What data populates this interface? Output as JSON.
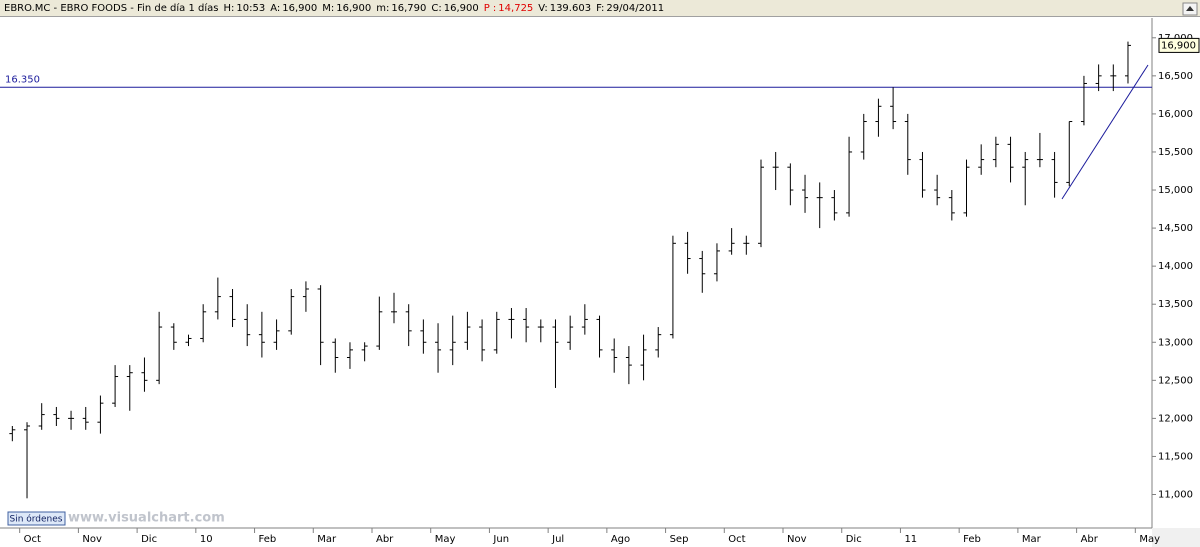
{
  "header": {
    "symbol": "EBRO.MC - EBRO FOODS - Fin de día 1 días",
    "fields": [
      {
        "label": "H:",
        "value": "10:53"
      },
      {
        "label": "A:",
        "value": "16,900"
      },
      {
        "label": "M:",
        "value": "16,900"
      },
      {
        "label": "m:",
        "value": "16,790"
      },
      {
        "label": "C:",
        "value": "16,900"
      },
      {
        "label": "P :",
        "value": "14,725",
        "color": "#e00000"
      },
      {
        "label": "V:",
        "value": "139.603"
      },
      {
        "label": "F:",
        "value": "29/04/2011"
      }
    ]
  },
  "chart_data": {
    "type": "ohlc",
    "color": "#000000",
    "categories": [
      null,
      "Oct",
      null,
      null,
      null,
      "Nov",
      null,
      null,
      null,
      "Dic",
      null,
      null,
      null,
      "10",
      null,
      null,
      null,
      "Feb",
      null,
      null,
      null,
      "Mar",
      null,
      null,
      null,
      "Abr",
      null,
      null,
      null,
      "May",
      null,
      null,
      null,
      "Jun",
      null,
      null,
      null,
      "Jul",
      null,
      null,
      null,
      "Ago",
      null,
      null,
      null,
      "Sep",
      null,
      null,
      null,
      "Oct",
      null,
      null,
      null,
      "Nov",
      null,
      null,
      null,
      "Dic",
      null,
      null,
      null,
      "11",
      null,
      null,
      null,
      "Feb",
      null,
      null,
      null,
      "Mar",
      null,
      null,
      null,
      "Abr",
      null,
      null,
      null,
      "May"
    ],
    "open": [
      11800,
      11850,
      11900,
      12050,
      12000,
      12000,
      11950,
      12200,
      12550,
      12600,
      12500,
      13200,
      13000,
      13050,
      13400,
      13600,
      13300,
      13100,
      13000,
      13150,
      13600,
      13700,
      13000,
      12800,
      12900,
      12950,
      13400,
      13400,
      13150,
      13000,
      12900,
      13000,
      13200,
      12900,
      13300,
      13300,
      13200,
      13200,
      13000,
      13200,
      13300,
      12900,
      12800,
      12700,
      12900,
      13100,
      14300,
      14100,
      13900,
      14200,
      14300,
      14300,
      15300,
      15300,
      15000,
      14900,
      14900,
      14700,
      15500,
      15900,
      16100,
      15900,
      15400,
      15000,
      14900,
      14700,
      15300,
      15400,
      15600,
      15300,
      15400,
      15400,
      15100,
      15900,
      16400,
      16500,
      16500,
      null
    ],
    "high": [
      11900,
      11950,
      12200,
      12150,
      12100,
      12150,
      12300,
      12700,
      12700,
      12800,
      13400,
      13250,
      13100,
      13500,
      13850,
      13700,
      13500,
      13400,
      13300,
      13700,
      13800,
      13750,
      13050,
      13000,
      13000,
      13600,
      13650,
      13500,
      13300,
      13250,
      13350,
      13400,
      13300,
      13400,
      13450,
      13450,
      13300,
      13300,
      13350,
      13500,
      13350,
      13050,
      12950,
      13100,
      13200,
      14400,
      14450,
      14200,
      14300,
      14500,
      14400,
      15400,
      15500,
      15350,
      15200,
      15100,
      15000,
      15700,
      16000,
      16200,
      16350,
      16000,
      15500,
      15200,
      15000,
      15400,
      15600,
      15700,
      15700,
      15500,
      15750,
      15500,
      15900,
      16500,
      16650,
      16650,
      16950,
      null
    ],
    "low": [
      11700,
      10950,
      11850,
      11900,
      11850,
      11850,
      11800,
      12150,
      12100,
      12350,
      12450,
      12900,
      12950,
      13000,
      13300,
      13200,
      12950,
      12800,
      12900,
      13100,
      13400,
      12700,
      12600,
      12650,
      12750,
      12900,
      13250,
      12950,
      12850,
      12600,
      12700,
      12900,
      12750,
      12850,
      13050,
      13000,
      13000,
      12400,
      12900,
      13100,
      12800,
      12600,
      12450,
      12500,
      12800,
      13050,
      13900,
      13650,
      13800,
      14150,
      14150,
      14250,
      15000,
      14800,
      14700,
      14500,
      14600,
      14650,
      15400,
      15700,
      15800,
      15200,
      14900,
      14800,
      14600,
      14650,
      15200,
      15300,
      15100,
      14800,
      15300,
      14900,
      15050,
      15850,
      16300,
      16300,
      16400,
      null
    ],
    "close": [
      11850,
      11900,
      12050,
      12000,
      12000,
      11950,
      12200,
      12550,
      12600,
      12500,
      13200,
      13000,
      13050,
      13400,
      13600,
      13300,
      13100,
      13000,
      13150,
      13600,
      13700,
      13000,
      12800,
      12900,
      12950,
      13400,
      13400,
      13150,
      13000,
      12900,
      13000,
      13200,
      12900,
      13300,
      13300,
      13200,
      13200,
      13000,
      13200,
      13300,
      12900,
      12800,
      12700,
      12900,
      13100,
      14300,
      14100,
      13900,
      14200,
      14300,
      14300,
      15300,
      15300,
      15000,
      14900,
      14900,
      14700,
      15500,
      15900,
      16100,
      15900,
      15400,
      15000,
      14900,
      14700,
      15300,
      15400,
      15600,
      15300,
      15400,
      15400,
      15100,
      15900,
      16400,
      16500,
      16500,
      16900,
      null
    ],
    "ylim": [
      10560,
      17260
    ],
    "yticks": [
      {
        "value": 11000,
        "label": "11,000"
      },
      {
        "value": 11500,
        "label": "11,500"
      },
      {
        "value": 12000,
        "label": "12,000"
      },
      {
        "value": 12500,
        "label": "12,500"
      },
      {
        "value": 13000,
        "label": "13,000"
      },
      {
        "value": 13500,
        "label": "13,500"
      },
      {
        "value": 14000,
        "label": "14,000"
      },
      {
        "value": 14500,
        "label": "14,500"
      },
      {
        "value": 15000,
        "label": "15,000"
      },
      {
        "value": 15500,
        "label": "15,500"
      },
      {
        "value": 16000,
        "label": "16,000"
      },
      {
        "value": 16500,
        "label": "16,500"
      },
      {
        "value": 17000,
        "label": "17,000"
      }
    ],
    "level_line": {
      "value": 16350,
      "label": "16.350",
      "color": "#1c1c9c"
    },
    "last_price": {
      "value": 16900,
      "label": "16,900"
    }
  },
  "footer": {
    "button": "Sin órdenes",
    "watermark": "www.visualchart.com"
  }
}
